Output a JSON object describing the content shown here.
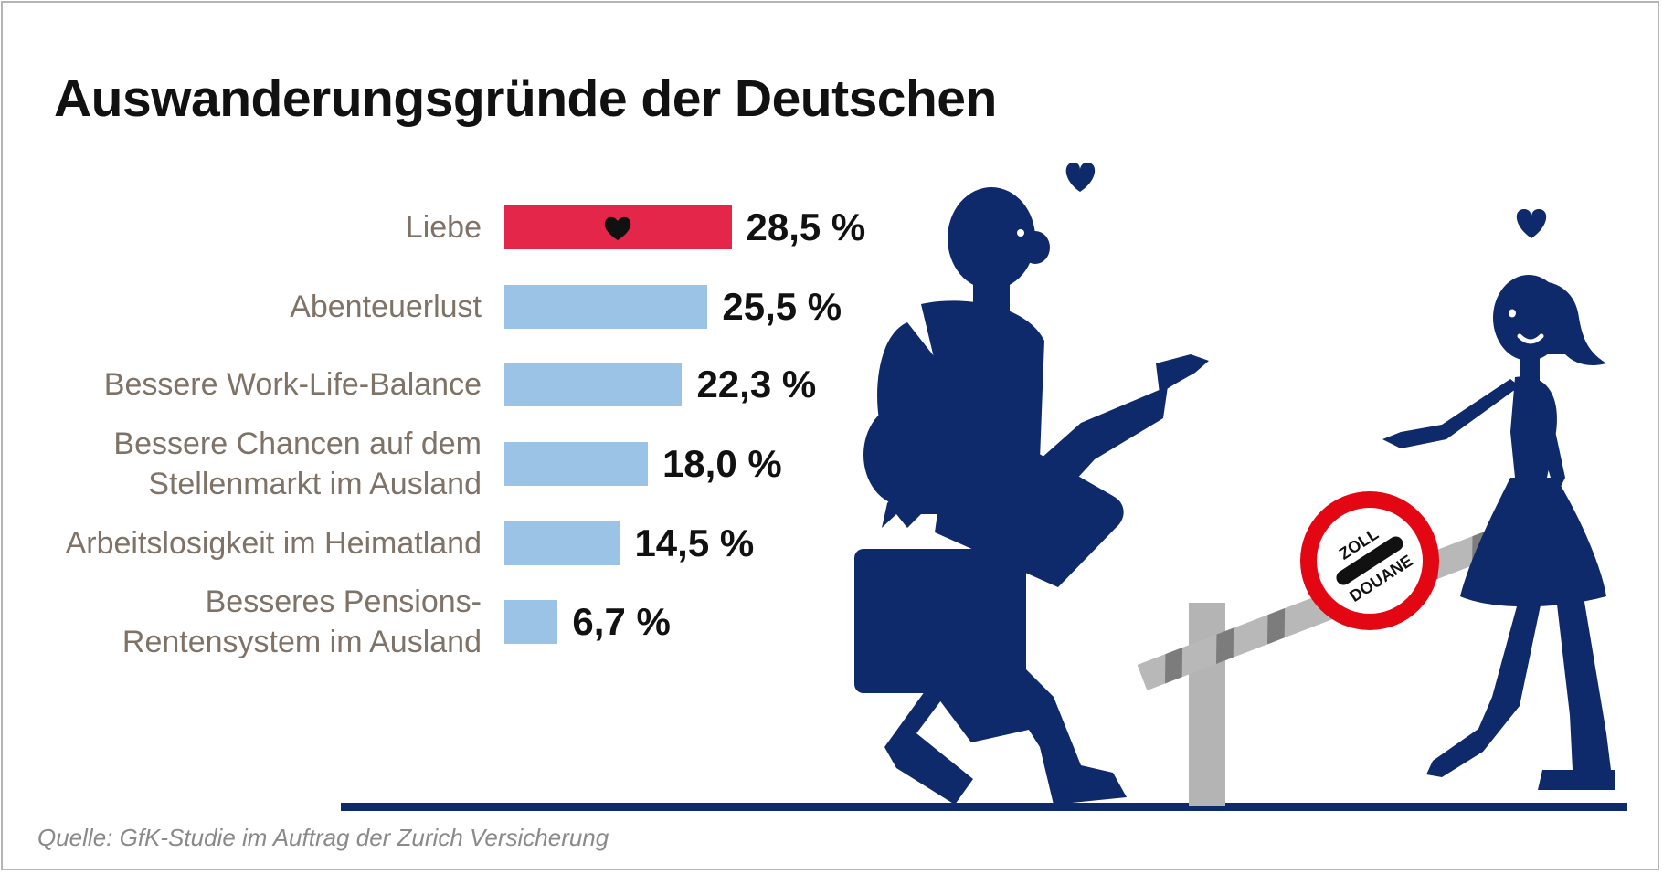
{
  "title": "Auswanderungsgründe der Deutschen",
  "source": "Quelle: GfK-Studie im Auftrag der Zurich Versicherung",
  "colors": {
    "highlight": "#e4264a",
    "bar": "#9bc3e6",
    "label": "#7f7368",
    "navy": "#0e2a6b"
  },
  "illustration": {
    "sign_line1": "ZOLL",
    "sign_line2": "DOUANE"
  },
  "chart_data": {
    "type": "bar",
    "orientation": "horizontal",
    "title": "Auswanderungsgründe der Deutschen",
    "unit": "%",
    "categories": [
      "Liebe",
      "Abenteuerlust",
      "Bessere Work-Life-Balance",
      "Bessere Chancen auf dem Stellenmarkt im Ausland",
      "Arbeitslosigkeit im Heimatland",
      "Besseres Pensions-Rentensystem im Ausland"
    ],
    "label_lines": [
      [
        "Liebe"
      ],
      [
        "Abenteuerlust"
      ],
      [
        "Bessere Work-Life-Balance"
      ],
      [
        "Bessere Chancen auf dem",
        "Stellenmarkt im Ausland"
      ],
      [
        "Arbeitslosigkeit im Heimatland"
      ],
      [
        "Besseres Pensions-",
        "Rentensystem im Ausland"
      ]
    ],
    "values": [
      28.5,
      25.5,
      22.3,
      18.0,
      14.5,
      6.7
    ],
    "value_labels": [
      "28,5 %",
      "25,5 %",
      "22,3 %",
      "18,0 %",
      "14,5 %",
      "6,7 %"
    ],
    "highlight_index": 0,
    "xlabel": "",
    "ylabel": ""
  }
}
